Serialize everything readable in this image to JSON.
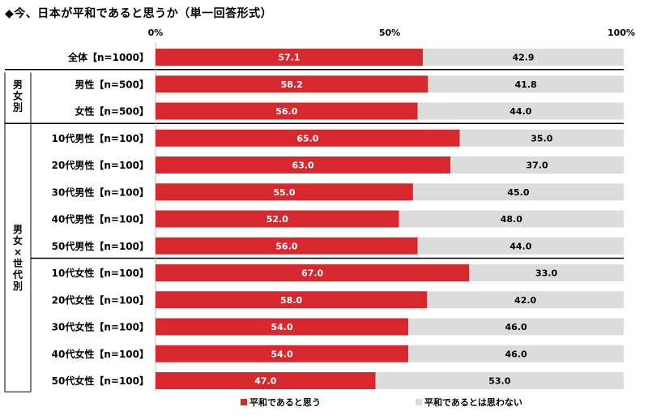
{
  "title": "◆今、日本が平和であると思うか（単一回答形式）",
  "colors": {
    "yes": "#d7282f",
    "no": "#dcdcdc"
  },
  "chart_data": {
    "type": "bar",
    "orientation": "horizontal",
    "stacked": true,
    "xlim": [
      0,
      100
    ],
    "xticks": [
      "0%",
      "50%",
      "100%"
    ],
    "grid": false,
    "legend_position": "bottom",
    "groups": [
      {
        "label": "",
        "rows": [
          0
        ]
      },
      {
        "label": "男女別",
        "rows": [
          1,
          2
        ]
      },
      {
        "label": "男女×世代別",
        "rows": [
          3,
          4,
          5,
          6,
          7,
          8,
          9,
          10,
          11,
          12
        ]
      }
    ],
    "categories": [
      "全体【n=1000】",
      "男性【n=500】",
      "女性【n=500】",
      "10代男性【n=100】",
      "20代男性【n=100】",
      "30代男性【n=100】",
      "40代男性【n=100】",
      "50代男性【n=100】",
      "10代女性【n=100】",
      "20代女性【n=100】",
      "30代女性【n=100】",
      "40代女性【n=100】",
      "50代女性【n=100】"
    ],
    "series": [
      {
        "name": "平和であると思う",
        "values": [
          57.1,
          58.2,
          56.0,
          65.0,
          63.0,
          55.0,
          52.0,
          56.0,
          67.0,
          58.0,
          54.0,
          54.0,
          47.0
        ]
      },
      {
        "name": "平和であるとは思わない",
        "values": [
          42.9,
          41.8,
          44.0,
          35.0,
          37.0,
          45.0,
          48.0,
          44.0,
          33.0,
          42.0,
          46.0,
          46.0,
          53.0
        ]
      }
    ]
  }
}
